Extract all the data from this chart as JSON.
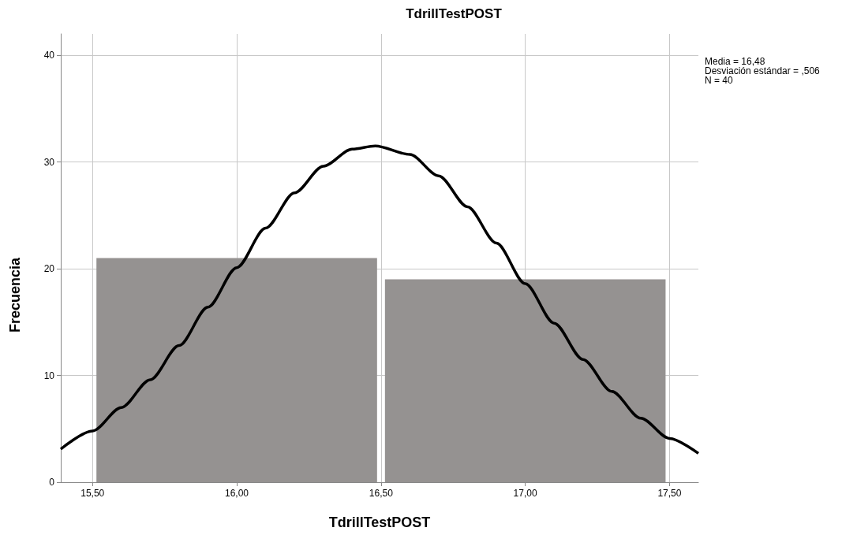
{
  "chart_data": {
    "type": "histogram",
    "title": "TdrillTestPOST",
    "xlabel": "TdrillTestPOST",
    "ylabel": "Frecuencia",
    "bins": [
      15.5,
      16.5,
      17.5
    ],
    "values": [
      21,
      19
    ],
    "color": "#959291",
    "series": [
      {
        "type": "line",
        "color": "#000000",
        "x": [
          15.39,
          15.5,
          15.6,
          15.7,
          15.8,
          15.9,
          16.0,
          16.1,
          16.2,
          16.3,
          16.4,
          16.48,
          16.6,
          16.7,
          16.8,
          16.9,
          17.0,
          17.1,
          17.2,
          17.3,
          17.4,
          17.5,
          17.6
        ],
        "values": [
          3.1,
          4.8,
          7.0,
          9.6,
          12.8,
          16.4,
          20.1,
          23.8,
          27.1,
          29.6,
          31.2,
          31.5,
          30.7,
          28.7,
          25.8,
          22.4,
          18.6,
          14.9,
          11.5,
          8.5,
          6.0,
          4.1,
          2.7
        ]
      }
    ],
    "xlim": [
      15.39,
      17.6
    ],
    "xticks": [
      {
        "value": 15.5,
        "label": "15,50"
      },
      {
        "value": 16.0,
        "label": "16,00"
      },
      {
        "value": 16.5,
        "label": "16,50"
      },
      {
        "value": 17.0,
        "label": "17,00"
      },
      {
        "value": 17.5,
        "label": "17,50"
      }
    ],
    "ylim": [
      0,
      42
    ],
    "yticks": [
      0,
      10,
      20,
      30,
      40
    ],
    "grid": true,
    "marker": "none",
    "line_style": "solid",
    "legend": false,
    "annotations": [
      "Media = 16,48",
      "Desviación estándar = ,506",
      "N = 40"
    ]
  }
}
